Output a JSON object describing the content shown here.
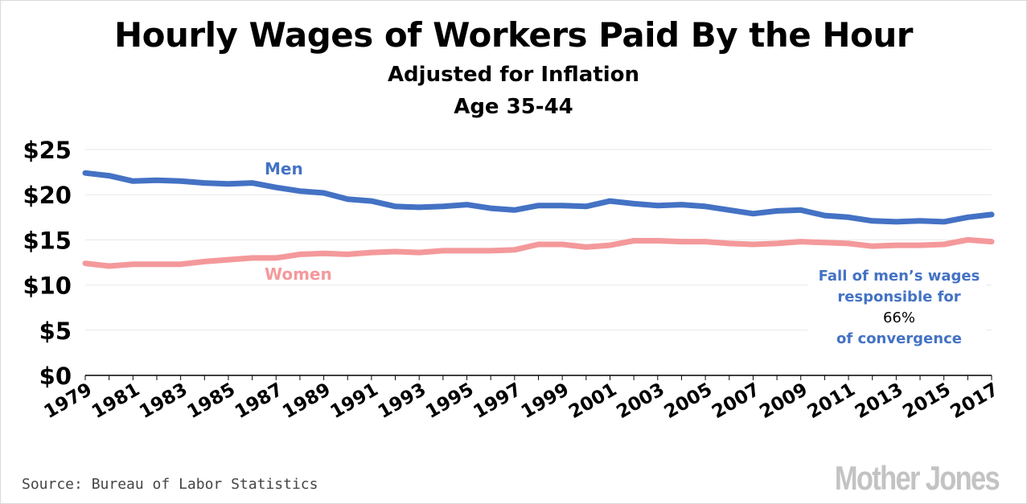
{
  "header": {
    "title": "Hourly Wages of Workers Paid By the Hour",
    "subtitle_line1": "Adjusted for Inflation",
    "subtitle_line2": "Age 35-44"
  },
  "footer": {
    "source": "Source: Bureau of Labor Statistics",
    "logo": "Mother Jones"
  },
  "colors": {
    "men": "#4472c4",
    "women": "#f4999b",
    "annotation": "#4472c4",
    "grid": "#e8e8e8"
  },
  "chart_data": {
    "type": "line",
    "x": [
      1979,
      1980,
      1981,
      1982,
      1983,
      1984,
      1985,
      1986,
      1987,
      1988,
      1989,
      1990,
      1991,
      1992,
      1993,
      1994,
      1995,
      1996,
      1997,
      1998,
      1999,
      2000,
      2001,
      2002,
      2003,
      2004,
      2005,
      2006,
      2007,
      2008,
      2009,
      2010,
      2011,
      2012,
      2013,
      2014,
      2015,
      2016,
      2017
    ],
    "x_tick_labels": [
      "1979",
      "1981",
      "1983",
      "1985",
      "1987",
      "1989",
      "1991",
      "1993",
      "1995",
      "1997",
      "1999",
      "2001",
      "2003",
      "2005",
      "2007",
      "2009",
      "2011",
      "2013",
      "2015",
      "2017"
    ],
    "y_tick_labels": [
      "$0",
      "$5",
      "$10",
      "$15",
      "$20",
      "$25"
    ],
    "y_ticks": [
      0,
      5,
      10,
      15,
      20,
      25
    ],
    "ylim": [
      0,
      25
    ],
    "grid": true,
    "series": [
      {
        "name": "Men",
        "color": "#4472c4",
        "values": [
          22.4,
          22.1,
          21.5,
          21.6,
          21.5,
          21.3,
          21.2,
          21.3,
          20.8,
          20.4,
          20.2,
          19.5,
          19.3,
          18.7,
          18.6,
          18.7,
          18.9,
          18.5,
          18.3,
          18.8,
          18.8,
          18.7,
          19.3,
          19.0,
          18.8,
          18.9,
          18.7,
          18.3,
          17.9,
          18.2,
          18.3,
          17.7,
          17.5,
          17.1,
          17.0,
          17.1,
          17.0,
          17.5,
          17.8
        ]
      },
      {
        "name": "Women",
        "color": "#f4999b",
        "values": [
          12.4,
          12.1,
          12.3,
          12.3,
          12.3,
          12.6,
          12.8,
          13.0,
          13.0,
          13.4,
          13.5,
          13.4,
          13.6,
          13.7,
          13.6,
          13.8,
          13.8,
          13.8,
          13.9,
          14.5,
          14.5,
          14.2,
          14.4,
          14.9,
          14.9,
          14.8,
          14.8,
          14.6,
          14.5,
          14.6,
          14.8,
          14.7,
          14.6,
          14.3,
          14.4,
          14.4,
          14.5,
          15.0,
          14.8
        ]
      }
    ],
    "annotation": {
      "line1": "Fall of men’s wages",
      "line2": "responsible for",
      "value": "66%",
      "line4": "of convergence"
    }
  }
}
